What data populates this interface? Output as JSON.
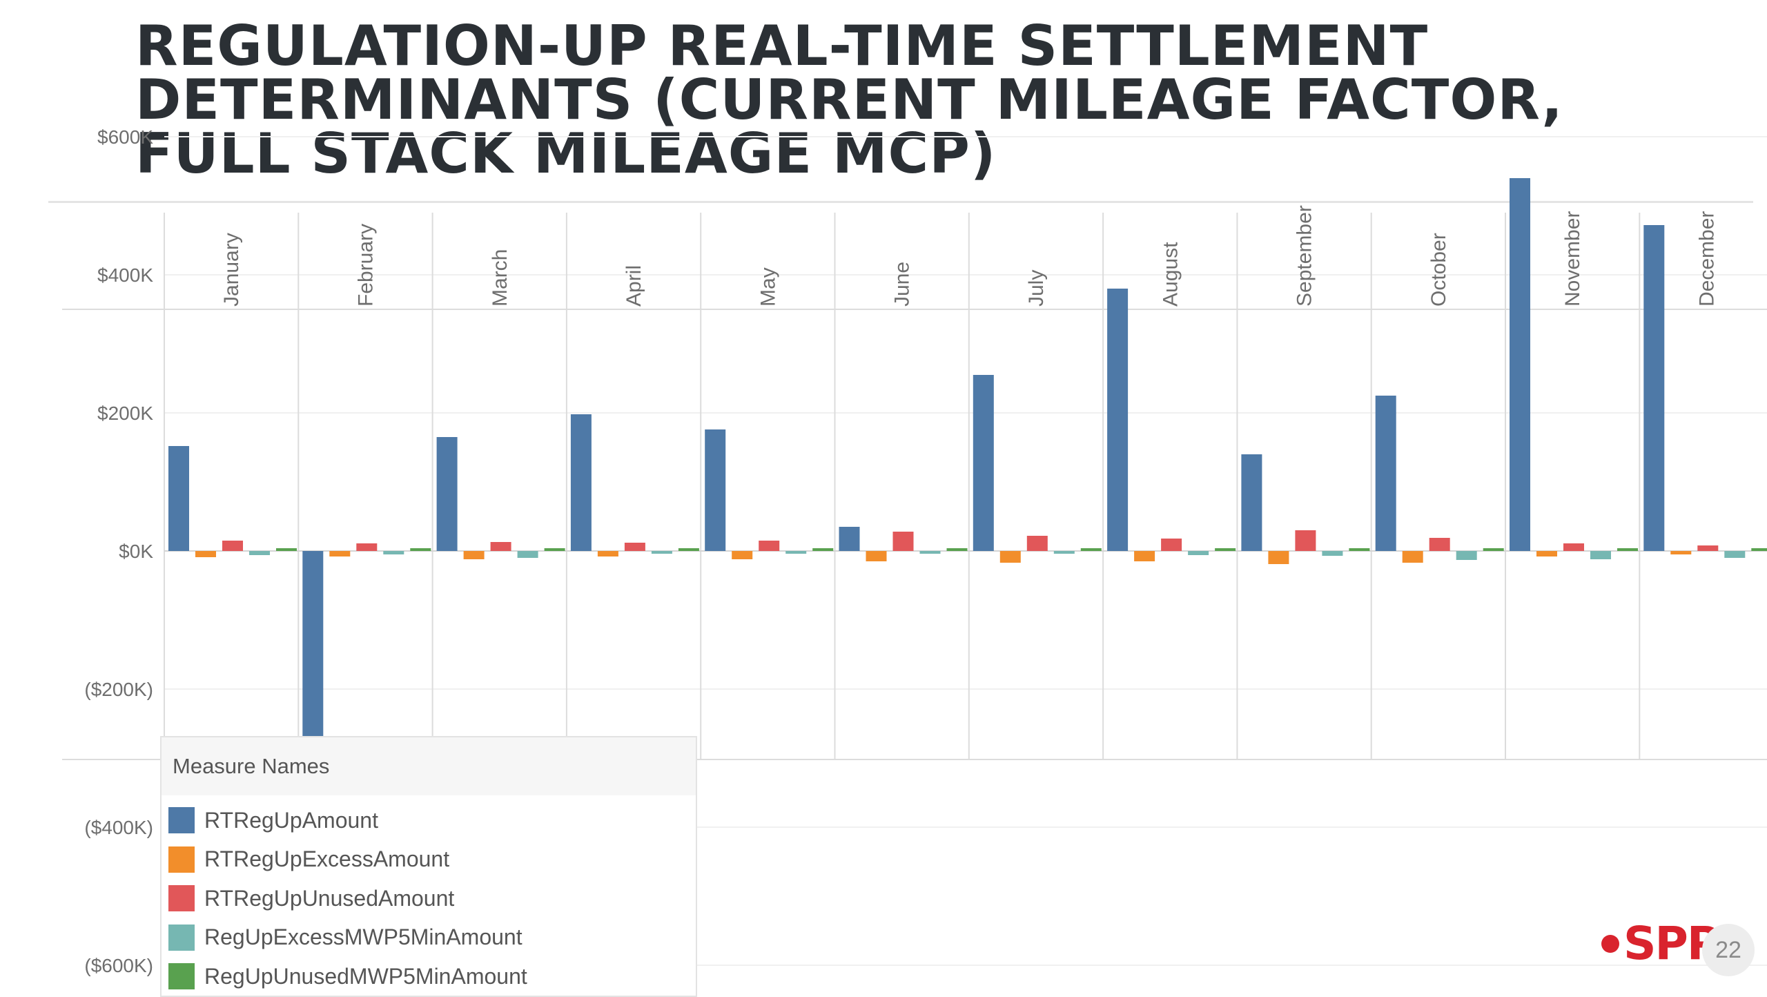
{
  "slide": {
    "title": "REGULATION-UP REAL-TIME SETTLEMENT DETERMINANTS (CURRENT MILEAGE FACTOR, FULL STACK MILEAGE MCP)",
    "page_number": "22",
    "logo_text": "SPP"
  },
  "legend": {
    "title": "Measure Names"
  },
  "chart_data": {
    "type": "bar",
    "categories": [
      "January",
      "February",
      "March",
      "April",
      "May",
      "June",
      "July",
      "August",
      "September",
      "October",
      "November",
      "December"
    ],
    "series": [
      {
        "name": "RTRegUpAmount",
        "color": "#4e79a7",
        "values": [
          152000,
          -540000,
          165000,
          198000,
          176000,
          35000,
          255000,
          380000,
          140000,
          225000,
          540000,
          472000
        ]
      },
      {
        "name": "RTRegUpExcessAmount",
        "color": "#f28e2b",
        "values": [
          -9000,
          -8000,
          -12000,
          -8000,
          -12000,
          -15000,
          -17000,
          -15000,
          -19000,
          -17000,
          -8000,
          -5000
        ]
      },
      {
        "name": "RTRegUpUnusedAmount",
        "color": "#e15759",
        "values": [
          15000,
          11000,
          13000,
          12000,
          15000,
          28000,
          22000,
          18000,
          30000,
          19000,
          11000,
          8000
        ]
      },
      {
        "name": "RegUpExcessMWP5MinAmount",
        "color": "#76b7b2",
        "values": [
          -6000,
          -5000,
          -10000,
          -4000,
          -4000,
          -3000,
          -3000,
          -6000,
          -7000,
          -13000,
          -12000,
          -10000
        ]
      },
      {
        "name": "RegUpUnusedMWP5MinAmount",
        "color": "#59a14f",
        "values": [
          2000,
          2000,
          2000,
          2000,
          2000,
          2000,
          2000,
          2000,
          2000,
          2000,
          2000,
          2000
        ]
      }
    ],
    "y_ticks": [
      {
        "value": 600000,
        "label": "$600K"
      },
      {
        "value": 400000,
        "label": "$400K"
      },
      {
        "value": 200000,
        "label": "$200K"
      },
      {
        "value": 0,
        "label": "$0K"
      },
      {
        "value": -200000,
        "label": "($200K)"
      },
      {
        "value": -400000,
        "label": "($400K)"
      },
      {
        "value": -600000,
        "label": "($600K)"
      }
    ],
    "ylim": [
      -600000,
      600000
    ],
    "grid": true,
    "legend_position": "bottom-left"
  }
}
